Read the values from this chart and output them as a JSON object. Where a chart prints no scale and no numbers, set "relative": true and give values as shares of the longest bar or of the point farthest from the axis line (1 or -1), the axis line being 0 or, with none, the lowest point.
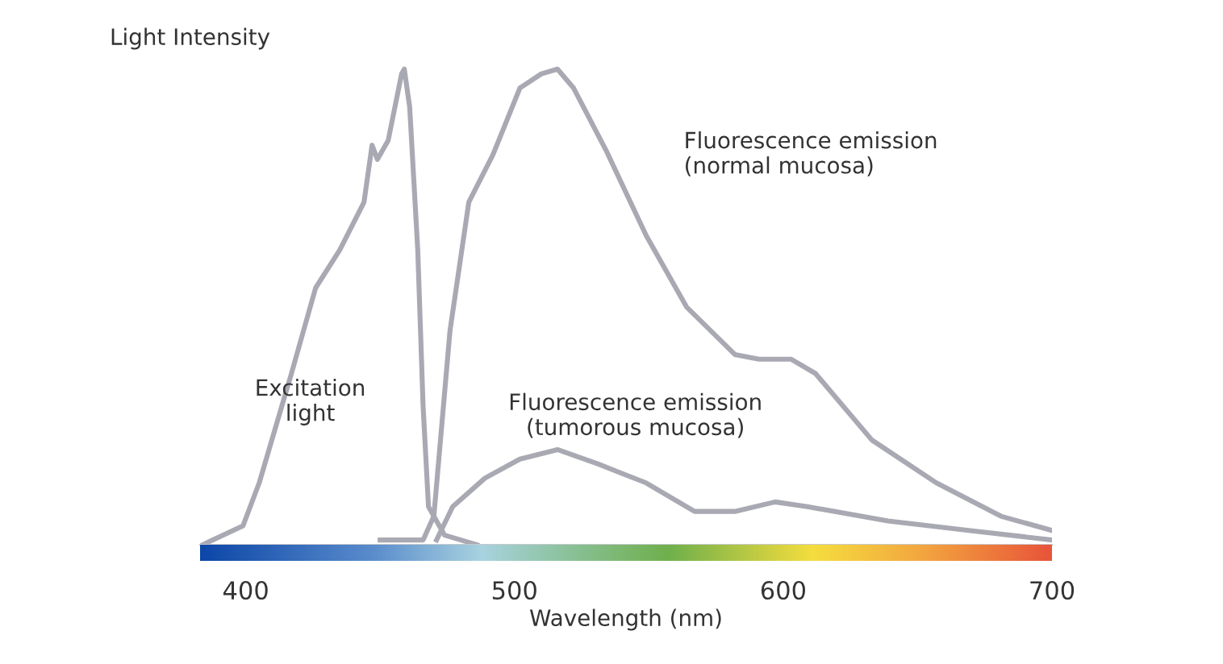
{
  "chart_data": {
    "type": "line",
    "relative": true,
    "ylabel": "Light Intensity",
    "xlabel": "Wavelength (nm)",
    "xlim": [
      383,
      700
    ],
    "xticks": [
      400,
      500,
      600,
      700
    ],
    "grid": false,
    "legend": false,
    "marker": "none",
    "line_style": "solid",
    "series": [
      {
        "name": "Excitation\nlight",
        "color": "#a9a9b3",
        "x": [
          384,
          399,
          405,
          417,
          426,
          435,
          444,
          447,
          449,
          453,
          458,
          459,
          461,
          464,
          466,
          468,
          474,
          486
        ],
        "values": [
          0,
          0.04,
          0.13,
          0.36,
          0.54,
          0.62,
          0.72,
          0.84,
          0.81,
          0.85,
          0.99,
          1.0,
          0.92,
          0.62,
          0.29,
          0.08,
          0.02,
          0
        ]
      },
      {
        "name": "Fluorescence emission\n(normal mucosa)",
        "color": "#a9a9b3",
        "x": [
          450,
          466,
          470,
          476,
          483,
          492,
          502,
          510,
          516,
          522,
          534,
          549,
          564,
          582,
          591,
          603,
          612,
          633,
          657,
          681,
          700
        ],
        "values": [
          0.01,
          0.01,
          0.06,
          0.45,
          0.72,
          0.82,
          0.96,
          0.99,
          1.0,
          0.96,
          0.83,
          0.65,
          0.5,
          0.4,
          0.39,
          0.39,
          0.36,
          0.22,
          0.13,
          0.06,
          0.03
        ]
      },
      {
        "name": "Fluorescence emission\n(tumorous mucosa)",
        "color": "#a9a9b3",
        "x": [
          471,
          477,
          489,
          502,
          516,
          531,
          549,
          567,
          582,
          597,
          609,
          639,
          669,
          700
        ],
        "values": [
          0.01,
          0.08,
          0.14,
          0.18,
          0.2,
          0.17,
          0.13,
          0.07,
          0.07,
          0.09,
          0.08,
          0.05,
          0.03,
          0.01
        ]
      }
    ]
  }
}
